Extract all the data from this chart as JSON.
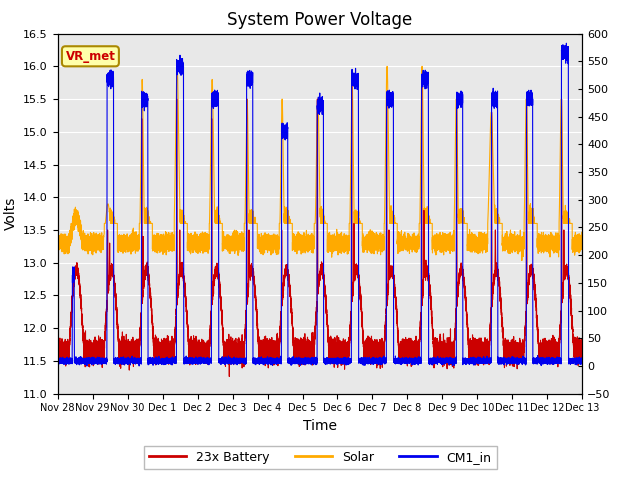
{
  "title": "System Power Voltage",
  "xlabel": "Time",
  "ylabel_left": "Volts",
  "ylim_left": [
    11.0,
    16.5
  ],
  "ylim_right": [
    -50,
    600
  ],
  "yticks_left": [
    11.0,
    11.5,
    12.0,
    12.5,
    13.0,
    13.5,
    14.0,
    14.5,
    15.0,
    15.5,
    16.0,
    16.5
  ],
  "yticks_right": [
    -50,
    0,
    50,
    100,
    150,
    200,
    250,
    300,
    350,
    400,
    450,
    500,
    550,
    600
  ],
  "xtick_labels": [
    "Nov 28",
    "Nov 29",
    "Nov 30",
    "Dec 1",
    "Dec 2",
    "Dec 3",
    "Dec 4",
    "Dec 5",
    "Dec 6",
    "Dec 7",
    "Dec 8",
    "Dec 9",
    "Dec 10",
    "Dec 11",
    "Dec 12",
    "Dec 13"
  ],
  "colors": {
    "battery": "#cc0000",
    "solar": "#ffaa00",
    "cm1": "#0000ee",
    "background": "#e8e8e8",
    "grid": "#ffffff",
    "annotation_bg": "#ffffaa",
    "annotation_border": "#aa8800",
    "annotation_text": "#cc0000"
  },
  "legend_labels": [
    "23x Battery",
    "Solar",
    "CM1_in"
  ],
  "annotation_text": "VR_met",
  "title_fontsize": 12,
  "axis_fontsize": 10,
  "tick_fontsize": 8
}
